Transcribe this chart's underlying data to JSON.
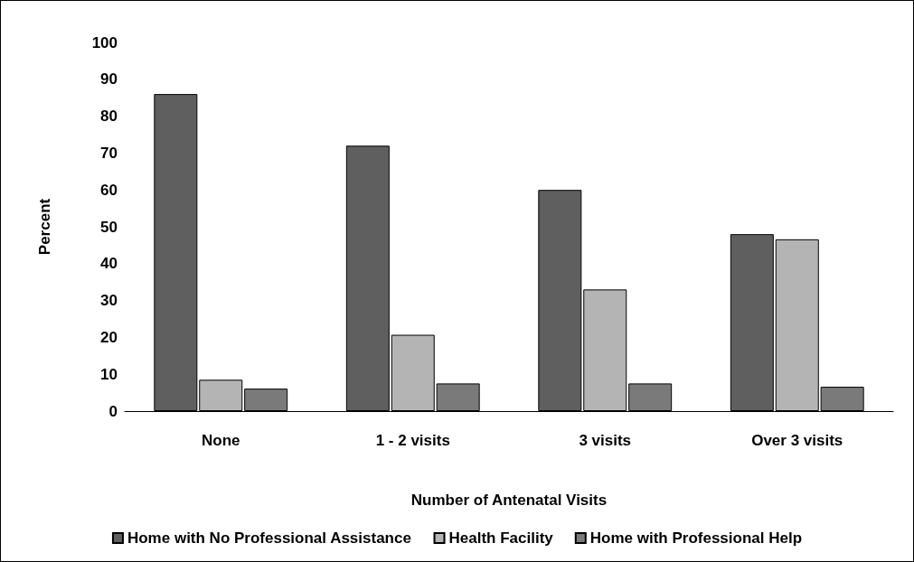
{
  "chart_data": {
    "type": "bar",
    "xlabel": "Number of Antenatal Visits",
    "ylabel": "Percent",
    "categories": [
      "None",
      "1 - 2 visits",
      "3 visits",
      "Over 3 visits"
    ],
    "series": [
      {
        "name": "Home with No Professional Assistance",
        "color": "#5f5f5f",
        "values": [
          86,
          72,
          60,
          48
        ]
      },
      {
        "name": "Health Facility",
        "color": "#b4b4b4",
        "values": [
          8.5,
          20.7,
          33,
          46.6
        ]
      },
      {
        "name": "Home with Professional Help",
        "color": "#7a7a7a",
        "values": [
          6.1,
          7.5,
          7.5,
          6.6
        ]
      }
    ],
    "ylim": [
      0,
      100
    ],
    "yticks": [
      0,
      10,
      20,
      30,
      40,
      50,
      60,
      70,
      80,
      90,
      100
    ],
    "grid": false,
    "legend": "bottom"
  }
}
